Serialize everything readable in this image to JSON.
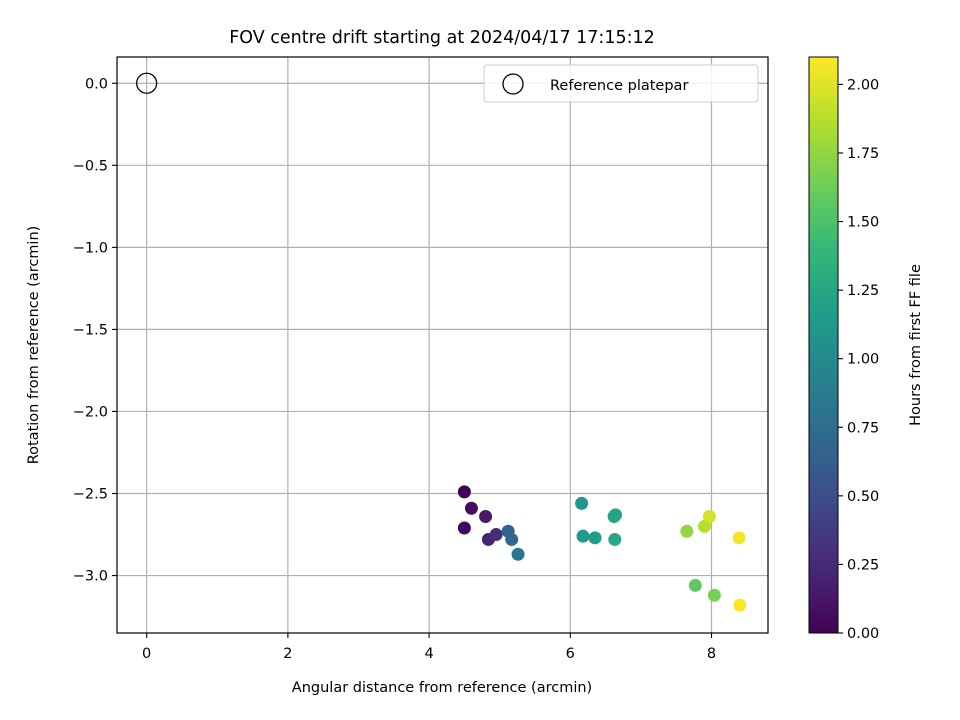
{
  "chart_data": {
    "type": "scatter",
    "title": "FOV centre drift starting at 2024/04/17 17:15:12",
    "xlabel": "Angular distance from reference (arcmin)",
    "ylabel": "Rotation from reference (arcmin)",
    "xlim": [
      -0.42,
      8.8
    ],
    "ylim": [
      -3.35,
      0.16
    ],
    "x_ticks": [
      0,
      2,
      4,
      6,
      8
    ],
    "y_ticks": [
      0.0,
      -0.5,
      -1.0,
      -1.5,
      -2.0,
      -2.5,
      -3.0
    ],
    "x_tick_labels": [
      "0",
      "2",
      "4",
      "6",
      "8"
    ],
    "y_tick_labels": [
      "0.0",
      "−0.5",
      "−1.0",
      "−1.5",
      "−2.0",
      "−2.5",
      "−3.0"
    ],
    "grid": true,
    "legend": {
      "placement": "top-right",
      "entries": [
        "Reference platepar"
      ]
    },
    "reference": {
      "name": "Reference platepar",
      "x": 0,
      "y": 0,
      "marker": "open-circle"
    },
    "colorbar": {
      "label": "Hours from first FF file",
      "range": [
        0,
        2.1
      ],
      "ticks": [
        0.0,
        0.25,
        0.5,
        0.75,
        1.0,
        1.25,
        1.5,
        1.75,
        2.0
      ],
      "tick_labels": [
        "0.00",
        "0.25",
        "0.50",
        "0.75",
        "1.00",
        "1.25",
        "1.50",
        "1.75",
        "2.00"
      ],
      "colormap": "viridis"
    },
    "points": [
      {
        "x": 4.5,
        "y": -2.49,
        "c": 0.0
      },
      {
        "x": 4.5,
        "y": -2.71,
        "c": 0.03
      },
      {
        "x": 4.6,
        "y": -2.59,
        "c": 0.07
      },
      {
        "x": 4.8,
        "y": -2.64,
        "c": 0.15
      },
      {
        "x": 4.84,
        "y": -2.78,
        "c": 0.2
      },
      {
        "x": 4.95,
        "y": -2.75,
        "c": 0.27
      },
      {
        "x": 5.12,
        "y": -2.73,
        "c": 0.65
      },
      {
        "x": 5.17,
        "y": -2.78,
        "c": 0.7
      },
      {
        "x": 5.26,
        "y": -2.87,
        "c": 0.82
      },
      {
        "x": 6.16,
        "y": -2.56,
        "c": 1.1
      },
      {
        "x": 6.18,
        "y": -2.76,
        "c": 1.13
      },
      {
        "x": 6.35,
        "y": -2.77,
        "c": 1.16
      },
      {
        "x": 6.62,
        "y": -2.64,
        "c": 1.2
      },
      {
        "x": 6.64,
        "y": -2.63,
        "c": 1.22
      },
      {
        "x": 6.63,
        "y": -2.78,
        "c": 1.25
      },
      {
        "x": 7.65,
        "y": -2.73,
        "c": 1.75
      },
      {
        "x": 7.77,
        "y": -3.06,
        "c": 1.58
      },
      {
        "x": 7.9,
        "y": -2.7,
        "c": 1.86
      },
      {
        "x": 7.97,
        "y": -2.64,
        "c": 1.96
      },
      {
        "x": 8.04,
        "y": -3.12,
        "c": 1.66
      },
      {
        "x": 8.39,
        "y": -2.77,
        "c": 2.07
      },
      {
        "x": 8.4,
        "y": -3.18,
        "c": 2.1
      }
    ]
  }
}
